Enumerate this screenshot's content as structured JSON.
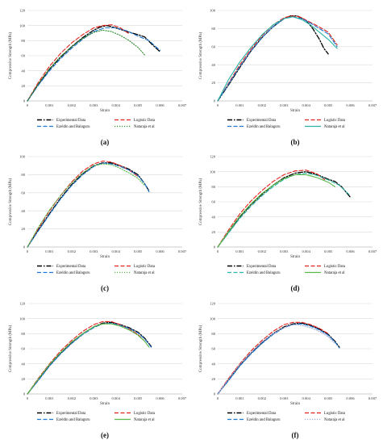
{
  "chart_data": [
    {
      "type": "line",
      "panel_label": "(a)",
      "xlabel": "Strain",
      "ylabel": "Compressive Strength (MPa)",
      "xlim": [
        0,
        0.007
      ],
      "ylim": [
        0,
        120
      ],
      "xticks": [
        "0",
        "0.001",
        "0.002",
        "0.003",
        "0.004",
        "0.005",
        "0.006",
        "0.007"
      ],
      "yticks": [
        "0",
        "20",
        "40",
        "60",
        "80",
        "100",
        "120"
      ],
      "grid": "horizontal",
      "legend_position": "bottom",
      "series": [
        {
          "name": "Experimental Data",
          "color": "#000000",
          "style": "dashdot",
          "x": [
            0,
            0.0005,
            0.001,
            0.0015,
            0.002,
            0.0025,
            0.003,
            0.0033,
            0.0036,
            0.004,
            0.0045,
            0.005,
            0.0053,
            0.0056,
            0.006
          ],
          "y": [
            0,
            22,
            42,
            58,
            72,
            84,
            94,
            98,
            100,
            97,
            92,
            88,
            85,
            76,
            65
          ]
        },
        {
          "name": "Logistic Data",
          "color": "#e3211c",
          "style": "dash",
          "x": [
            0,
            0.0005,
            0.001,
            0.0015,
            0.002,
            0.0025,
            0.003,
            0.0034,
            0.0038,
            0.0042,
            0.0046
          ],
          "y": [
            0,
            25,
            46,
            63,
            77,
            88,
            97,
            100,
            101,
            97,
            89
          ]
        },
        {
          "name": "Ezeldin and Balaguru",
          "color": "#1f78d1",
          "style": "dash",
          "x": [
            0,
            0.0005,
            0.001,
            0.0015,
            0.002,
            0.0025,
            0.003,
            0.0035,
            0.004,
            0.0045,
            0.005,
            0.0055,
            0.0058,
            0.006
          ],
          "y": [
            0,
            21,
            40,
            56,
            70,
            82,
            92,
            97,
            97,
            93,
            86,
            80,
            72,
            67
          ]
        },
        {
          "name": "Nataraja et al",
          "color": "#2e8b2e",
          "style": "dot",
          "x": [
            0,
            0.0005,
            0.001,
            0.0015,
            0.002,
            0.0025,
            0.003,
            0.0034,
            0.0038,
            0.0042,
            0.0046,
            0.005,
            0.0053
          ],
          "y": [
            0,
            23,
            43,
            59,
            72,
            83,
            91,
            94,
            92,
            87,
            80,
            71,
            61
          ]
        }
      ]
    },
    {
      "type": "line",
      "panel_label": "(b)",
      "xlabel": "Strain",
      "ylabel": "Compressive Strength (MPa)",
      "xlim": [
        0,
        0.007
      ],
      "ylim": [
        0,
        100
      ],
      "xticks": [
        "0",
        "0.001",
        "0.002",
        "0.003",
        "0.004",
        "0.005",
        "0.006",
        "0.007"
      ],
      "yticks": [
        "0",
        "20",
        "40",
        "60",
        "80",
        "100"
      ],
      "grid": "horizontal",
      "legend_position": "bottom",
      "series": [
        {
          "name": "Experimental Data",
          "color": "#000000",
          "style": "dashdot",
          "x": [
            0,
            0.0005,
            0.001,
            0.0015,
            0.002,
            0.0025,
            0.003,
            0.0033,
            0.0036,
            0.004,
            0.0043,
            0.0046,
            0.0048,
            0.005
          ],
          "y": [
            0,
            18,
            37,
            55,
            70,
            82,
            91,
            94,
            94,
            89,
            80,
            68,
            58,
            52
          ]
        },
        {
          "name": "Logistic Data",
          "color": "#e3211c",
          "style": "dash",
          "x": [
            0,
            0.0005,
            0.001,
            0.0015,
            0.002,
            0.0025,
            0.003,
            0.0033,
            0.0037,
            0.0041,
            0.0045,
            0.005,
            0.0054
          ],
          "y": [
            0,
            20,
            40,
            57,
            72,
            84,
            92,
            94,
            93,
            88,
            83,
            76,
            62
          ]
        },
        {
          "name": "Ezeldin and Balaguru",
          "color": "#1f78d1",
          "style": "dash",
          "x": [
            0,
            0.0005,
            0.001,
            0.0015,
            0.002,
            0.0025,
            0.003,
            0.0034,
            0.0038,
            0.0042,
            0.0046,
            0.005,
            0.0054
          ],
          "y": [
            0,
            19,
            38,
            55,
            70,
            82,
            91,
            93,
            91,
            86,
            80,
            74,
            60
          ]
        },
        {
          "name": "Nataraja et al",
          "color": "#2ab3a6",
          "style": "solid",
          "x": [
            0,
            0.0005,
            0.001,
            0.0015,
            0.002,
            0.0025,
            0.003,
            0.0034,
            0.0038,
            0.0042,
            0.0046,
            0.005,
            0.0054
          ],
          "y": [
            0,
            24,
            43,
            59,
            73,
            84,
            91,
            93,
            90,
            84,
            76,
            68,
            58
          ]
        }
      ]
    },
    {
      "type": "line",
      "panel_label": "(c)",
      "xlabel": "Strain",
      "ylabel": "Compressive Strength (MPa)",
      "xlim": [
        0,
        0.007
      ],
      "ylim": [
        0,
        100
      ],
      "xticks": [
        "0",
        "0.001",
        "0.002",
        "0.003",
        "0.004",
        "0.005",
        "0.006",
        "0.007"
      ],
      "yticks": [
        "0",
        "20",
        "40",
        "60",
        "80",
        "100"
      ],
      "grid": "horizontal",
      "legend_position": "bottom",
      "series": [
        {
          "name": "Experimental Data",
          "color": "#000000",
          "style": "dashdot",
          "x": [
            0,
            0.0005,
            0.001,
            0.0015,
            0.002,
            0.0025,
            0.003,
            0.0034,
            0.0038,
            0.0042,
            0.0046,
            0.005,
            0.0053,
            0.0055
          ],
          "y": [
            0,
            19,
            37,
            54,
            69,
            81,
            90,
            93,
            93,
            90,
            86,
            80,
            70,
            62
          ]
        },
        {
          "name": "Logistic Data",
          "color": "#e3211c",
          "style": "dash",
          "x": [
            0,
            0.0005,
            0.001,
            0.0015,
            0.002,
            0.0025,
            0.003,
            0.0034,
            0.0038,
            0.0042,
            0.0046,
            0.005
          ],
          "y": [
            0,
            21,
            40,
            57,
            72,
            84,
            92,
            95,
            94,
            90,
            85,
            78
          ]
        },
        {
          "name": "Ezeldin and Balaguru",
          "color": "#1f78d1",
          "style": "dash",
          "x": [
            0,
            0.0005,
            0.001,
            0.0015,
            0.002,
            0.0025,
            0.003,
            0.0034,
            0.0038,
            0.0042,
            0.0046,
            0.005,
            0.0053,
            0.0055
          ],
          "y": [
            0,
            18,
            36,
            53,
            68,
            80,
            89,
            93,
            92,
            89,
            85,
            79,
            70,
            61
          ]
        },
        {
          "name": "Nataraja et al",
          "color": "#5ab94a",
          "style": "dot",
          "x": [
            0,
            0.0005,
            0.001,
            0.0015,
            0.002,
            0.0025,
            0.003,
            0.0034,
            0.0038,
            0.0042,
            0.0046,
            0.005,
            0.0053
          ],
          "y": [
            0,
            22,
            41,
            57,
            71,
            82,
            90,
            92,
            91,
            87,
            82,
            76,
            68
          ]
        }
      ]
    },
    {
      "type": "line",
      "panel_label": "(d)",
      "xlabel": "Strain",
      "ylabel": "Compressive Strength (MPa)",
      "xlim": [
        0,
        0.007
      ],
      "ylim": [
        0,
        120
      ],
      "xticks": [
        "0",
        "0.001",
        "0.002",
        "0.003",
        "0.004",
        "0.005",
        "0.006",
        "0.007"
      ],
      "yticks": [
        "0",
        "20",
        "40",
        "60",
        "80",
        "100",
        "120"
      ],
      "grid": "horizontal",
      "legend_position": "bottom",
      "series": [
        {
          "name": "Experimental Data",
          "color": "#000000",
          "style": "dashdot",
          "x": [
            0,
            0.0005,
            0.001,
            0.0015,
            0.002,
            0.0025,
            0.003,
            0.0035,
            0.004,
            0.0045,
            0.005,
            0.0053,
            0.0056,
            0.006
          ],
          "y": [
            0,
            20,
            40,
            56,
            70,
            82,
            92,
            98,
            100,
            96,
            90,
            87,
            80,
            66
          ]
        },
        {
          "name": "Logistic Data",
          "color": "#e3211c",
          "style": "dash",
          "x": [
            0,
            0.0005,
            0.001,
            0.0015,
            0.002,
            0.0025,
            0.003,
            0.0035,
            0.004,
            0.0045,
            0.0049
          ],
          "y": [
            0,
            23,
            44,
            61,
            75,
            87,
            96,
            101,
            102,
            97,
            88
          ]
        },
        {
          "name": "Ezeldin and Balaguru",
          "color": "#2ab3a6",
          "style": "dash",
          "x": [
            0,
            0.0005,
            0.001,
            0.0015,
            0.002,
            0.0025,
            0.003,
            0.0035,
            0.004,
            0.0045,
            0.005,
            0.0055,
            0.006
          ],
          "y": [
            0,
            19,
            38,
            54,
            68,
            80,
            90,
            96,
            98,
            95,
            89,
            82,
            68
          ]
        },
        {
          "name": "Nataraja et al",
          "color": "#5ab94a",
          "style": "solid",
          "x": [
            0,
            0.0005,
            0.001,
            0.0015,
            0.002,
            0.0025,
            0.003,
            0.0035,
            0.004,
            0.0045,
            0.005,
            0.0053
          ],
          "y": [
            0,
            21,
            41,
            57,
            71,
            82,
            91,
            96,
            96,
            92,
            86,
            80
          ]
        }
      ]
    },
    {
      "type": "line",
      "panel_label": "(e)",
      "xlabel": "Strain",
      "ylabel": "Compressive Strength (MPa)",
      "xlim": [
        0,
        0.007
      ],
      "ylim": [
        0,
        120
      ],
      "xticks": [
        "0",
        "0.001",
        "0.002",
        "0.003",
        "0.004",
        "0.005",
        "0.006",
        "0.007"
      ],
      "yticks": [
        "0",
        "20",
        "40",
        "60",
        "80",
        "100",
        "120"
      ],
      "grid": "horizontal",
      "legend_position": "bottom",
      "series": [
        {
          "name": "Experimental Data",
          "color": "#000000",
          "style": "dashdot",
          "x": [
            0,
            0.0005,
            0.001,
            0.0015,
            0.002,
            0.0025,
            0.003,
            0.0034,
            0.0038,
            0.0042,
            0.0046,
            0.005,
            0.0053,
            0.0056
          ],
          "y": [
            0,
            19,
            38,
            54,
            68,
            80,
            89,
            94,
            95,
            92,
            88,
            82,
            74,
            63
          ]
        },
        {
          "name": "Logistic Data",
          "color": "#e3211c",
          "style": "dash",
          "x": [
            0,
            0.0005,
            0.001,
            0.0015,
            0.002,
            0.0025,
            0.003,
            0.0034,
            0.0038,
            0.0042,
            0.0046,
            0.005,
            0.0053
          ],
          "y": [
            0,
            21,
            40,
            57,
            71,
            83,
            92,
            96,
            96,
            92,
            86,
            79,
            70
          ]
        },
        {
          "name": "Ezeldin and Balaguru",
          "color": "#1f78d1",
          "style": "dash",
          "x": [
            0,
            0.0005,
            0.001,
            0.0015,
            0.002,
            0.0025,
            0.003,
            0.0034,
            0.0038,
            0.0042,
            0.0046,
            0.005,
            0.0053,
            0.0056
          ],
          "y": [
            0,
            18,
            37,
            53,
            67,
            79,
            88,
            93,
            94,
            91,
            87,
            81,
            73,
            62
          ]
        },
        {
          "name": "Nataraja et al",
          "color": "#5ab94a",
          "style": "solid",
          "x": [
            0,
            0.0005,
            0.001,
            0.0015,
            0.002,
            0.0025,
            0.003,
            0.0034,
            0.0038,
            0.0042,
            0.0046,
            0.005,
            0.0053,
            0.0055
          ],
          "y": [
            0,
            20,
            39,
            55,
            69,
            80,
            89,
            93,
            93,
            90,
            85,
            78,
            70,
            62
          ]
        }
      ]
    },
    {
      "type": "line",
      "panel_label": "(f)",
      "xlabel": "Strain",
      "ylabel": "Compressive Strength (MPa)",
      "xlim": [
        0,
        0.007
      ],
      "ylim": [
        0,
        120
      ],
      "xticks": [
        "0",
        "0.001",
        "0.002",
        "0.003",
        "0.004",
        "0.005",
        "0.006",
        "0.007"
      ],
      "yticks": [
        "0",
        "20",
        "40",
        "60",
        "80",
        "100",
        "120"
      ],
      "grid": "horizontal",
      "legend_position": "bottom",
      "series": [
        {
          "name": "Experimental Data",
          "color": "#000000",
          "style": "dashdot",
          "x": [
            0,
            0.0005,
            0.001,
            0.0015,
            0.002,
            0.0025,
            0.003,
            0.0034,
            0.0038,
            0.0042,
            0.0046,
            0.005,
            0.0053,
            0.0055
          ],
          "y": [
            0,
            19,
            38,
            54,
            68,
            80,
            89,
            93,
            94,
            91,
            86,
            79,
            70,
            62
          ]
        },
        {
          "name": "Logistic Data",
          "color": "#e3211c",
          "style": "dash",
          "x": [
            0,
            0.0005,
            0.001,
            0.0015,
            0.002,
            0.0025,
            0.003,
            0.0034,
            0.0038,
            0.0042,
            0.0046,
            0.005
          ],
          "y": [
            0,
            21,
            40,
            57,
            71,
            83,
            92,
            95,
            95,
            92,
            87,
            80
          ]
        },
        {
          "name": "Ezeldin and Balaguru",
          "color": "#1f78d1",
          "style": "dash",
          "x": [
            0,
            0.0005,
            0.001,
            0.0015,
            0.002,
            0.0025,
            0.003,
            0.0034,
            0.0038,
            0.0042,
            0.0046,
            0.005,
            0.0053,
            0.0055
          ],
          "y": [
            0,
            18,
            37,
            53,
            67,
            79,
            88,
            92,
            93,
            90,
            85,
            78,
            69,
            61
          ]
        },
        {
          "name": "Nataraja et al",
          "color": "#9fa9d6",
          "style": "dot",
          "x": [
            0,
            0.0005,
            0.001,
            0.0015,
            0.002,
            0.0025,
            0.003,
            0.0034,
            0.0038,
            0.0042,
            0.0046,
            0.005,
            0.0053
          ],
          "y": [
            0,
            20,
            39,
            55,
            69,
            80,
            88,
            92,
            91,
            88,
            83,
            76,
            67
          ]
        }
      ]
    }
  ]
}
